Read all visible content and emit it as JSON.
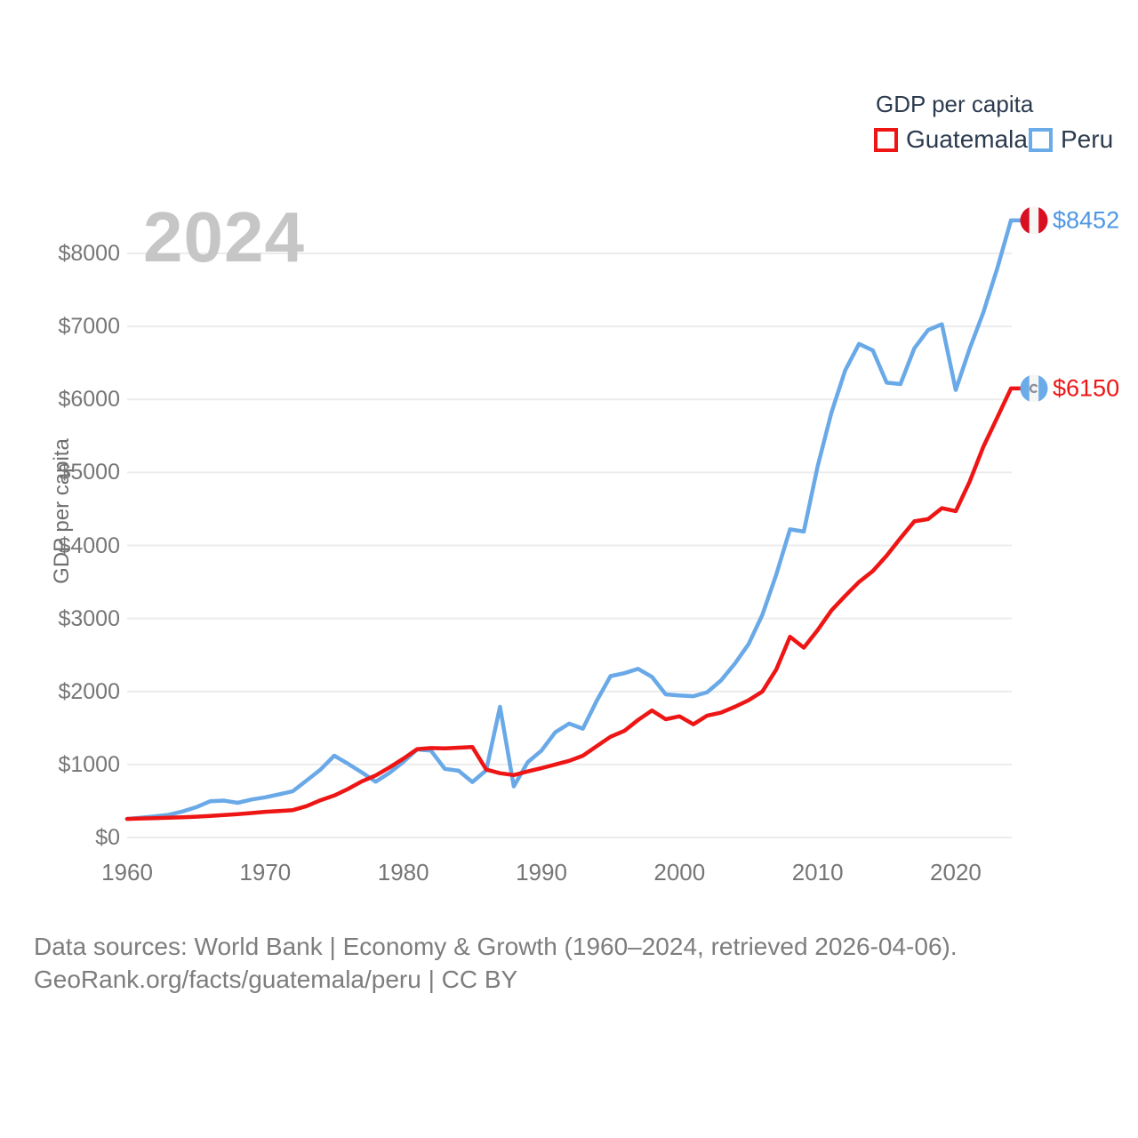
{
  "legend": {
    "title": "GDP per capita",
    "items": [
      {
        "label": "Guatemala",
        "color": "#ee1515"
      },
      {
        "label": "Peru",
        "color": "#6aabe8"
      }
    ]
  },
  "watermark": "2024",
  "y_axis": {
    "label": "GDP per capita",
    "ticks": [
      {
        "label": "$0",
        "value": 0
      },
      {
        "label": "$1000",
        "value": 1000
      },
      {
        "label": "$2000",
        "value": 2000
      },
      {
        "label": "$3000",
        "value": 3000
      },
      {
        "label": "$4000",
        "value": 4000
      },
      {
        "label": "$5000",
        "value": 5000
      },
      {
        "label": "$6000",
        "value": 6000
      },
      {
        "label": "$7000",
        "value": 7000
      },
      {
        "label": "$8000",
        "value": 8000
      }
    ]
  },
  "x_axis": {
    "ticks": [
      {
        "label": "1960",
        "value": 1960
      },
      {
        "label": "1970",
        "value": 1970
      },
      {
        "label": "1980",
        "value": 1980
      },
      {
        "label": "1990",
        "value": 1990
      },
      {
        "label": "2000",
        "value": 2000
      },
      {
        "label": "2010",
        "value": 2010
      },
      {
        "label": "2020",
        "value": 2020
      }
    ]
  },
  "end_labels": {
    "peru": {
      "value": "$8452",
      "flag": "peru-flag"
    },
    "guatemala": {
      "value": "$6150",
      "flag": "guatemala-flag"
    }
  },
  "footer": {
    "line1": "Data sources: World Bank | Economy & Growth (1960–2024, retrieved 2026-04-06).",
    "line2": "GeoRank.org/facts/guatemala/peru | CC BY"
  },
  "chart_data": {
    "type": "line",
    "title": "GDP per capita",
    "xlabel": "",
    "ylabel": "GDP per capita",
    "xlim": [
      1960,
      2024
    ],
    "ylim": [
      0,
      8452
    ],
    "grid": "horizontal",
    "legend_position": "top-right",
    "x": [
      1960,
      1961,
      1962,
      1963,
      1964,
      1965,
      1966,
      1967,
      1968,
      1969,
      1970,
      1971,
      1972,
      1973,
      1974,
      1975,
      1976,
      1977,
      1978,
      1979,
      1980,
      1981,
      1982,
      1983,
      1984,
      1985,
      1986,
      1987,
      1988,
      1989,
      1990,
      1991,
      1992,
      1993,
      1994,
      1995,
      1996,
      1997,
      1998,
      1999,
      2000,
      2001,
      2002,
      2003,
      2004,
      2005,
      2006,
      2007,
      2008,
      2009,
      2010,
      2011,
      2012,
      2013,
      2014,
      2015,
      2016,
      2017,
      2018,
      2019,
      2020,
      2021,
      2022,
      2023,
      2024
    ],
    "series": [
      {
        "name": "Guatemala",
        "color": "#ee1515",
        "end_value_label": "$6150",
        "values": [
          255,
          260,
          264,
          270,
          277,
          285,
          295,
          307,
          320,
          335,
          352,
          363,
          375,
          430,
          510,
          575,
          665,
          770,
          850,
          960,
          1080,
          1210,
          1225,
          1220,
          1230,
          1240,
          930,
          880,
          855,
          905,
          950,
          1000,
          1050,
          1120,
          1250,
          1380,
          1460,
          1610,
          1740,
          1620,
          1660,
          1550,
          1670,
          1710,
          1790,
          1880,
          2000,
          2300,
          2750,
          2600,
          2840,
          3110,
          3310,
          3500,
          3650,
          3860,
          4100,
          4330,
          4360,
          4510,
          4470,
          4870,
          5350,
          5750,
          6150
        ]
      },
      {
        "name": "Peru",
        "color": "#69a9e7",
        "end_value_label": "$8452",
        "values": [
          255,
          270,
          290,
          310,
          355,
          415,
          495,
          505,
          475,
          520,
          550,
          590,
          635,
          780,
          930,
          1120,
          1010,
          890,
          765,
          885,
          1035,
          1205,
          1190,
          940,
          915,
          760,
          920,
          1790,
          700,
          1030,
          1190,
          1440,
          1560,
          1490,
          1870,
          2210,
          2250,
          2310,
          2200,
          1960,
          1945,
          1935,
          1990,
          2150,
          2380,
          2650,
          3050,
          3600,
          4220,
          4190,
          5080,
          5820,
          6400,
          6760,
          6670,
          6230,
          6210,
          6700,
          6950,
          7030,
          6130,
          6690,
          7190,
          7790,
          8452
        ]
      }
    ]
  }
}
